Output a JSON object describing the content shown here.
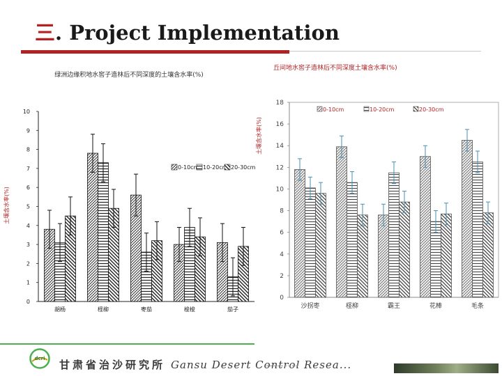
{
  "slide": {
    "title_num": "三",
    "title_text": ". Project Implementation",
    "footer_cn": "甘肃省治沙研究所",
    "footer_en": "Gansu Desert Control Resea..."
  },
  "chart_data": [
    {
      "type": "bar",
      "title": "绿洲边缘积地水窖子造林后不同深度的土壤含水率(%)",
      "ylabel": "土壤含水率(%)",
      "xlabel": "",
      "categories": [
        "胡杨",
        "柽柳",
        "枣茄",
        "梭梭",
        "茄子"
      ],
      "ylim": [
        0,
        10
      ],
      "yticks": [
        "0",
        "1",
        "2",
        "3",
        "4",
        "5",
        "6",
        "7",
        "8",
        "9",
        "10"
      ],
      "legend_position": "right-middle",
      "series": [
        {
          "name": "0-10cm",
          "values": [
            3.8,
            7.8,
            5.6,
            3.0,
            3.1
          ],
          "errors": [
            1.0,
            1.0,
            1.1,
            0.9,
            1.0
          ]
        },
        {
          "name": "10-20cm",
          "values": [
            3.1,
            7.3,
            2.6,
            3.9,
            1.3
          ],
          "errors": [
            1.0,
            1.0,
            1.0,
            1.0,
            1.0
          ]
        },
        {
          "name": "20-30cm",
          "values": [
            4.5,
            4.9,
            3.2,
            3.4,
            2.9
          ],
          "errors": [
            1.0,
            1.0,
            1.0,
            1.0,
            1.0
          ]
        }
      ]
    },
    {
      "type": "bar",
      "title": "丘间地水窖子造林后不同深度土壤含水率(%)",
      "ylabel": "土壤含水率(%)",
      "xlabel": "",
      "categories": [
        "沙拐枣",
        "柽柳",
        "霸王",
        "花棒",
        "毛条"
      ],
      "ylim": [
        0,
        18
      ],
      "yticks": [
        "0",
        "2",
        "4",
        "6",
        "8",
        "10",
        "12",
        "14",
        "16",
        "18"
      ],
      "legend_position": "top",
      "series": [
        {
          "name": "0-10cm",
          "values": [
            11.8,
            13.9,
            7.6,
            13.0,
            14.5
          ],
          "errors": [
            1.0,
            1.0,
            1.0,
            1.0,
            1.0
          ]
        },
        {
          "name": "10-20cm",
          "values": [
            10.1,
            10.6,
            11.5,
            7.0,
            12.5
          ],
          "errors": [
            1.0,
            1.0,
            1.0,
            1.0,
            1.0
          ]
        },
        {
          "name": "20-30cm",
          "values": [
            9.6,
            7.6,
            8.8,
            7.7,
            7.8
          ],
          "errors": [
            1.0,
            1.0,
            1.0,
            1.0,
            1.0
          ]
        }
      ]
    }
  ]
}
